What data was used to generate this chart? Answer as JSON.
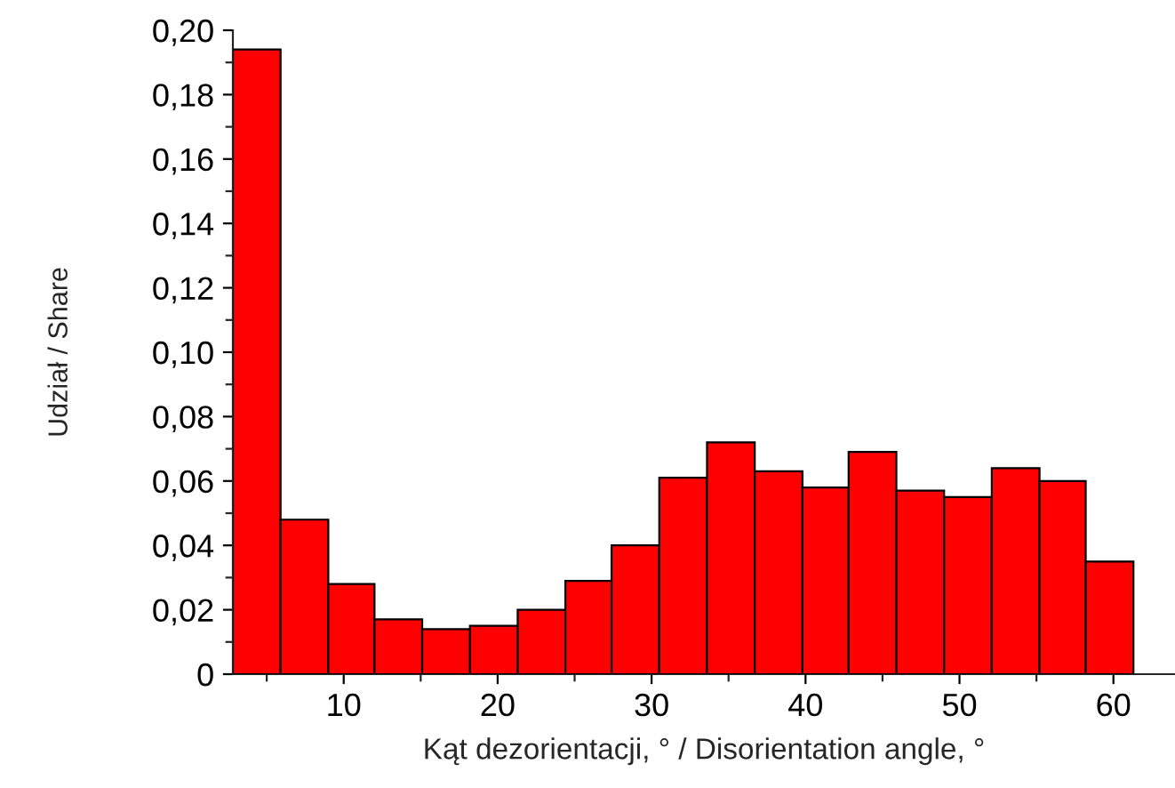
{
  "chart_data": {
    "type": "histogram",
    "xlabel": "Kąt dezorientacji, ° / Disorientation angle, °",
    "ylabel": "Udział / Share",
    "bins": [
      2.8,
      5.9,
      9.0,
      12.0,
      15.1,
      18.2,
      21.3,
      24.4,
      27.4,
      30.5,
      33.6,
      36.7,
      39.8,
      42.8,
      45.9,
      49.0,
      52.1,
      55.2,
      58.2,
      61.3
    ],
    "values": [
      0.194,
      0.048,
      0.028,
      0.017,
      0.014,
      0.015,
      0.02,
      0.029,
      0.04,
      0.061,
      0.072,
      0.063,
      0.058,
      0.069,
      0.057,
      0.055,
      0.064,
      0.06,
      0.035
    ],
    "color": "#ff0000",
    "xlim": [
      2.8,
      64
    ],
    "xticks": [
      10,
      20,
      30,
      40,
      50,
      60
    ],
    "ylim": [
      0,
      0.2
    ],
    "yticks": [
      {
        "value": 0,
        "label": "0"
      },
      {
        "value": 0.02,
        "label": "0,02"
      },
      {
        "value": 0.04,
        "label": "0,04"
      },
      {
        "value": 0.06,
        "label": "0,06"
      },
      {
        "value": 0.08,
        "label": "0,08"
      },
      {
        "value": 0.1,
        "label": "0,10"
      },
      {
        "value": 0.12,
        "label": "0,12"
      },
      {
        "value": 0.14,
        "label": "0,14"
      },
      {
        "value": 0.16,
        "label": "0,16"
      },
      {
        "value": 0.18,
        "label": "0,18"
      },
      {
        "value": 0.2,
        "label": "0,20"
      }
    ],
    "grid": false
  }
}
